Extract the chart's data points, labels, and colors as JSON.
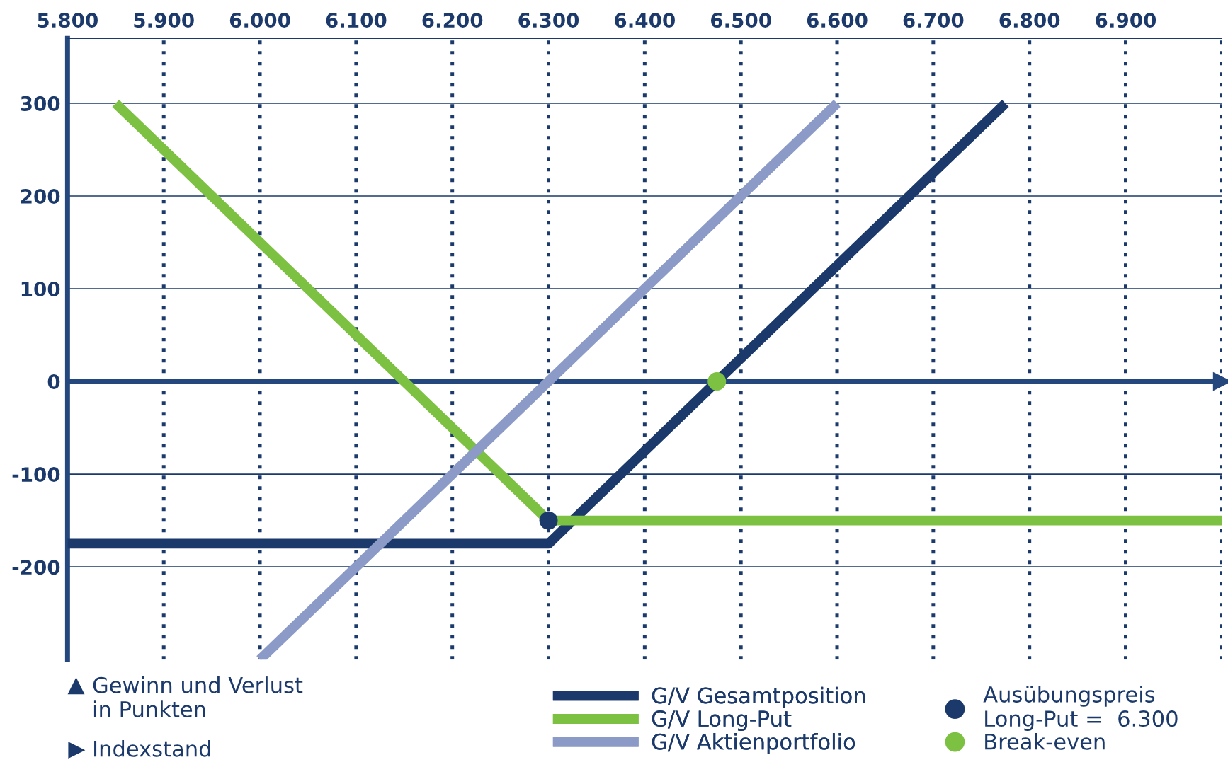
{
  "chart_data": {
    "type": "line",
    "annotations": [
      "Gewinn und Verlust\nin Punkten",
      "Indexstand"
    ],
    "ref_lines": [
      {
        "axis": "y",
        "value": 0,
        "color": "#24477e"
      }
    ],
    "xlim": [
      5800,
      7000
    ],
    "ylim": [
      -300,
      370
    ],
    "xticks": [
      {
        "value": 5800,
        "label": "5.800"
      },
      {
        "value": 5900,
        "label": "5.900"
      },
      {
        "value": 6000,
        "label": "6.000"
      },
      {
        "value": 6100,
        "label": "6.100"
      },
      {
        "value": 6200,
        "label": "6.200"
      },
      {
        "value": 6300,
        "label": "6.300"
      },
      {
        "value": 6400,
        "label": "6.400"
      },
      {
        "value": 6500,
        "label": "6.500"
      },
      {
        "value": 6600,
        "label": "6.600"
      },
      {
        "value": 6700,
        "label": "6.700"
      },
      {
        "value": 6800,
        "label": "6.800"
      },
      {
        "value": 6900,
        "label": "6.900"
      },
      {
        "value": 7000,
        "label": null
      }
    ],
    "yticks": [
      -200,
      -100,
      0,
      100,
      200,
      300
    ],
    "grid": true,
    "legend": "bottom",
    "series": [
      {
        "name": "G/V Gesamtposition",
        "color": "#1b3a6b",
        "x": [
          5800,
          6300,
          6775
        ],
        "values": [
          -175,
          -175,
          300
        ]
      },
      {
        "name": "G/V Long-Put",
        "color": "#7dc142",
        "x": [
          5850,
          6300,
          7000
        ],
        "values": [
          300,
          -150,
          -150
        ]
      },
      {
        "name": "G/V Aktienportfolio",
        "color": "#8b9ac6",
        "x": [
          6000,
          6600
        ],
        "values": [
          -300,
          300
        ]
      },
      {
        "name": "Ausübungspreis\nLong-Put =  6.300",
        "type": "scatter",
        "color": "#1b3a6b",
        "x": [
          6300
        ],
        "values": [
          -150
        ]
      },
      {
        "name": "Break-even",
        "type": "scatter",
        "color": "#7dc142",
        "x": [
          6475
        ],
        "values": [
          0
        ]
      }
    ]
  }
}
